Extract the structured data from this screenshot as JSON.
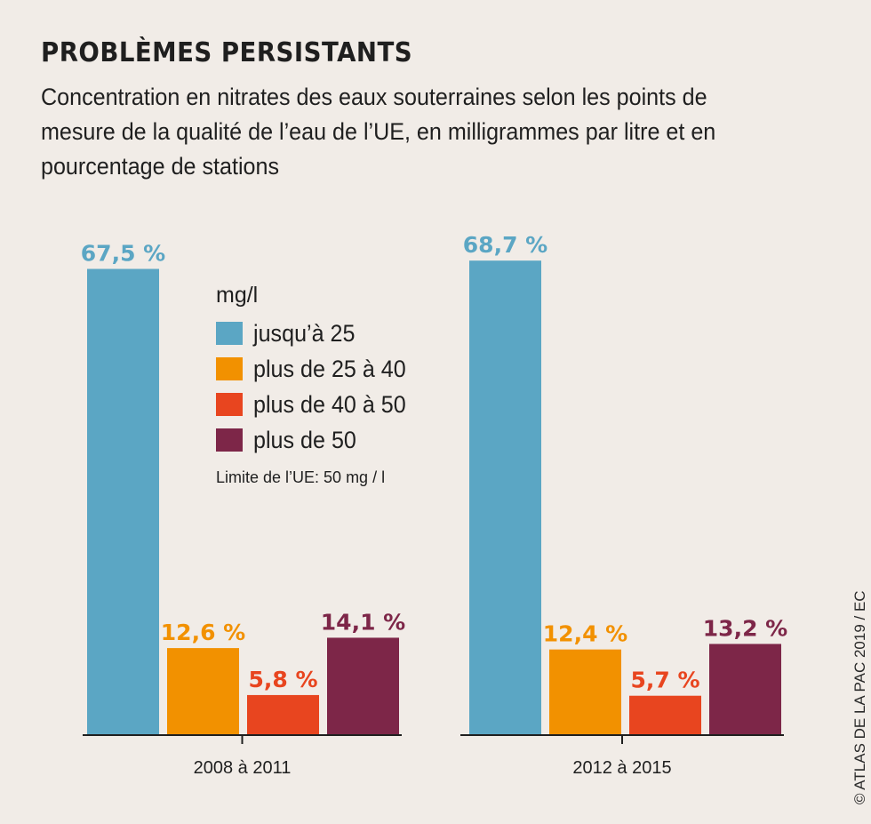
{
  "title": "PROBLÈMES PERSISTANTS",
  "subtitle": "Concentration en nitrates des eaux souterraines selon les points de mesure de la qualité de l’eau de l’UE, en milligrammes par litre et en pourcentage de stations",
  "legend": {
    "title": "mg/l",
    "items": [
      {
        "label": "jusqu’à 25",
        "color": "#5ba6c4"
      },
      {
        "label": "plus de 25 à 40",
        "color": "#f29100"
      },
      {
        "label": "plus de 40 à 50",
        "color": "#e8451f"
      },
      {
        "label": "plus de 50",
        "color": "#7d2648"
      }
    ],
    "note": "Limite de l’UE: 50 mg / l"
  },
  "credit": "© ATLAS DE LA PAC 2019 / EC",
  "chart_data": {
    "type": "bar",
    "categories": [
      "2008 à 2011",
      "2012 à 2015"
    ],
    "series": [
      {
        "name": "jusqu’à 25",
        "values": [
          67.5,
          68.7
        ],
        "labels": [
          "67,5 %",
          "68,7 %"
        ],
        "color": "#5ba6c4"
      },
      {
        "name": "plus de 25 à 40",
        "values": [
          12.6,
          12.4
        ],
        "labels": [
          "12,6 %",
          "12,4 %"
        ],
        "color": "#f29100"
      },
      {
        "name": "plus de 40 à 50",
        "values": [
          5.8,
          5.7
        ],
        "labels": [
          "5,8 %",
          "5,7 %"
        ],
        "color": "#e8451f"
      },
      {
        "name": "plus de 50",
        "values": [
          14.1,
          13.2
        ],
        "labels": [
          "14,1 %",
          "13,2 %"
        ],
        "color": "#7d2648"
      }
    ],
    "unit": "%"
  }
}
